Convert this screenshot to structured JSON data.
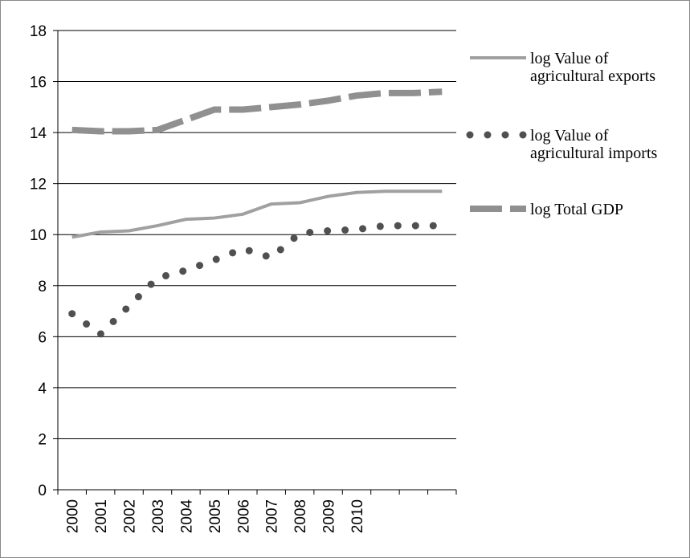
{
  "chart_data": {
    "type": "line",
    "categories": [
      "2000",
      "2001",
      "2002",
      "2003",
      "2004",
      "2005",
      "2006",
      "2007",
      "2008",
      "2009",
      "2010",
      null,
      null,
      null
    ],
    "series": [
      {
        "name": "log Value of agricultural exports",
        "color": "#a0a0a0",
        "style": "solid",
        "values": [
          9.9,
          10.1,
          10.15,
          10.35,
          10.6,
          10.65,
          10.8,
          11.2,
          11.25,
          11.5,
          11.65,
          11.7,
          11.7,
          11.7
        ]
      },
      {
        "name": "log Value of agricultural imports",
        "color": "#505050",
        "style": "dotted",
        "values": [
          6.9,
          6.1,
          7.2,
          8.3,
          8.6,
          9.0,
          9.45,
          9.1,
          10.05,
          10.15,
          10.2,
          10.35,
          10.35,
          10.35
        ]
      },
      {
        "name": "log Total GDP",
        "color": "#909090",
        "style": "dashed",
        "values": [
          14.1,
          14.05,
          14.05,
          14.1,
          14.5,
          14.9,
          14.9,
          15.0,
          15.1,
          15.25,
          15.45,
          15.55,
          15.55,
          15.6
        ]
      }
    ],
    "ylim": [
      0,
      18
    ],
    "yticks": [
      0,
      2,
      4,
      6,
      8,
      10,
      12,
      14,
      16,
      18
    ],
    "grid": true,
    "legend": "right"
  }
}
